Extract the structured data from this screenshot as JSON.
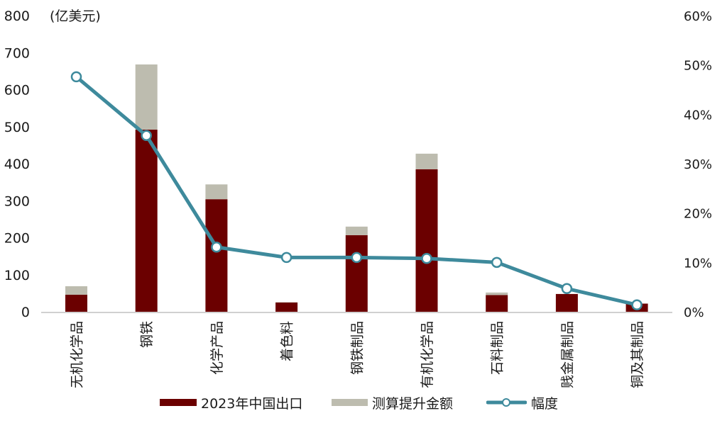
{
  "chart_data": {
    "type": "bar",
    "subtype": "stacked bar + line (dual axis)",
    "title": "",
    "unit_label": "(亿美元)",
    "categories": [
      "无机化学品",
      "钢铁",
      "化学产品",
      "着色料",
      "钢铁制品",
      "有机化学品",
      "石料制品",
      "贱金属制品",
      "铜及其制品"
    ],
    "series": [
      {
        "name": "2023年中国出口",
        "type": "bar",
        "axis": "left",
        "color": "#6b0000",
        "values": [
          46,
          492,
          304,
          25,
          207,
          385,
          45,
          48,
          22
        ]
      },
      {
        "name": "测算提升金额",
        "type": "bar",
        "axis": "left",
        "color": "#bdbcaf",
        "values": [
          23,
          176,
          40,
          1,
          23,
          42,
          7,
          0,
          0
        ]
      },
      {
        "name": "幅度",
        "type": "line",
        "axis": "right",
        "color": "#3e8a9c",
        "marker": "hollow-circle",
        "values": [
          0.476,
          0.357,
          0.131,
          0.11,
          0.11,
          0.108,
          0.1,
          0.047,
          0.014
        ]
      }
    ],
    "left_axis": {
      "min": 0,
      "max": 800,
      "ticks": [
        0,
        100,
        200,
        300,
        400,
        500,
        600,
        700,
        800
      ]
    },
    "right_axis": {
      "min": 0,
      "max": 0.6,
      "ticks": [
        "0%",
        "10%",
        "20%",
        "30%",
        "40%",
        "50%",
        "60%"
      ]
    },
    "xlabel": "",
    "ylabel": "(亿美元)",
    "grid": false,
    "legend_position": "bottom"
  },
  "legend": {
    "items": [
      {
        "label": "2023年中国出口",
        "color": "#6b0000"
      },
      {
        "label": "测算提升金额",
        "color": "#bdbcaf"
      },
      {
        "label": "幅度",
        "color": "#3e8a9c"
      }
    ]
  }
}
